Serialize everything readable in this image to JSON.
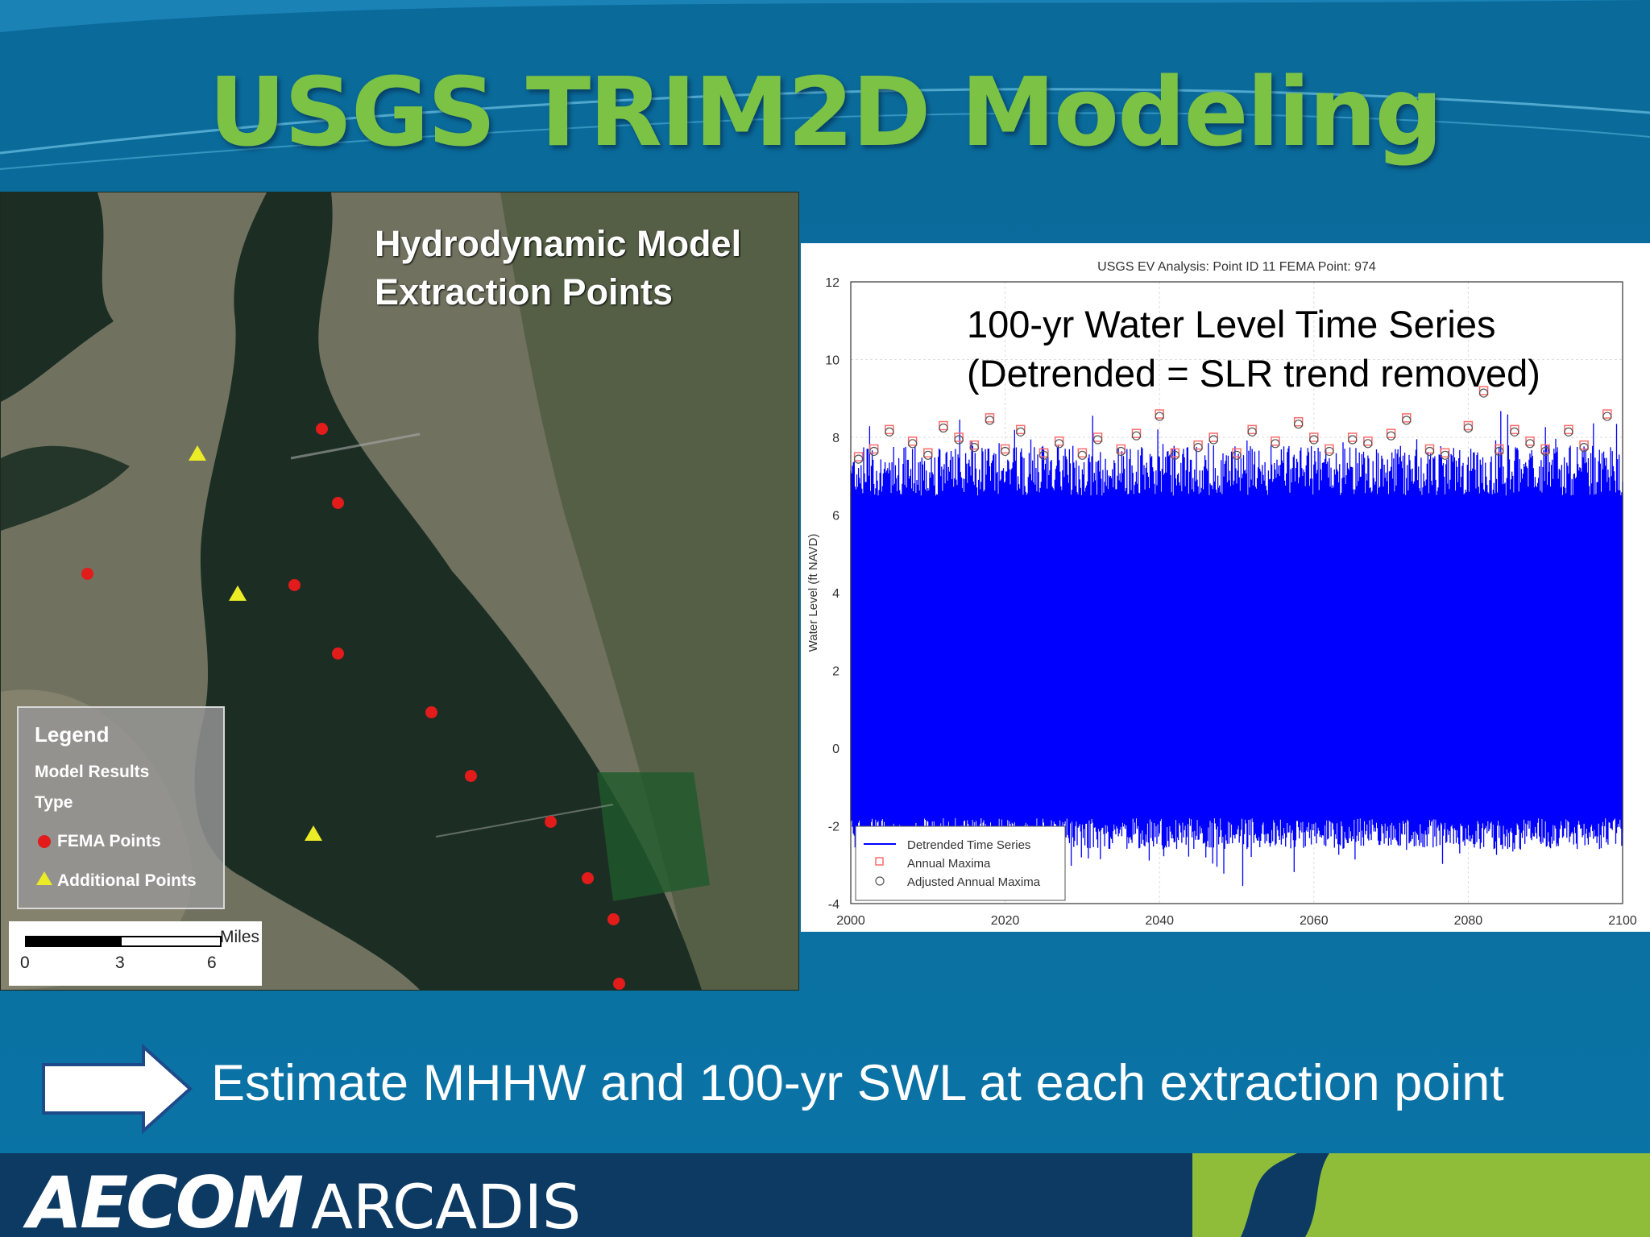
{
  "slide": {
    "title": "USGS TRIM2D Modeling",
    "bottom_text": "Estimate MHHW and 100-yr SWL at each extraction point"
  },
  "map": {
    "title_line1": "Hydrodynamic Model",
    "title_line2": "Extraction Points",
    "legend": {
      "title": "Legend",
      "subtitle_line1": "Model Results",
      "subtitle_line2": "Type",
      "item_fema": "FEMA Points",
      "item_additional": "Additional Points"
    },
    "scale": {
      "unit": "Miles",
      "t0": "0",
      "t1": "3",
      "t2": "6"
    },
    "colors": {
      "fema": "#e21b1b",
      "additional": "#ecec26"
    }
  },
  "chart_overlay": {
    "line1": "100-yr Water Level Time Series",
    "line2": "(Detrended = SLR trend removed)"
  },
  "chart_data": {
    "type": "line",
    "title": "USGS EV Analysis: Point ID 11    FEMA Point: 974",
    "xlabel": "",
    "ylabel": "Water Level (ft NAVD)",
    "xlim": [
      2000,
      2100
    ],
    "ylim": [
      -4,
      12
    ],
    "xticks": [
      "2000",
      "2020",
      "2040",
      "2060",
      "2080",
      "2100"
    ],
    "yticks": [
      "-4",
      "-2",
      "0",
      "2",
      "4",
      "6",
      "8",
      "10",
      "12"
    ],
    "grid": true,
    "legend_position": "bottom-left",
    "legend": [
      "Detrended Time Series",
      "Annual Maxima",
      "Adjusted Annual Maxima"
    ],
    "series": [
      {
        "name": "Detrended Time Series",
        "color": "#0000ff",
        "band_low": -1.8,
        "band_high": 6.5
      },
      {
        "name": "Annual Maxima",
        "color": "#ff6b6b"
      },
      {
        "name": "Adjusted Annual Maxima",
        "color": "#555555"
      }
    ],
    "annual_maxima": {
      "x": [
        2001,
        2003,
        2005,
        2008,
        2010,
        2012,
        2014,
        2016,
        2018,
        2020,
        2022,
        2025,
        2027,
        2030,
        2032,
        2035,
        2037,
        2040,
        2042,
        2045,
        2047,
        2050,
        2052,
        2055,
        2058,
        2060,
        2062,
        2065,
        2067,
        2070,
        2072,
        2075,
        2077,
        2080,
        2082,
        2084,
        2086,
        2088,
        2090,
        2093,
        2095,
        2098
      ],
      "y": [
        7.5,
        7.7,
        8.2,
        7.9,
        7.6,
        8.3,
        8.0,
        7.8,
        8.5,
        7.7,
        8.2,
        7.6,
        7.9,
        7.6,
        8.0,
        7.7,
        8.1,
        8.6,
        7.6,
        7.8,
        8.0,
        7.6,
        8.2,
        7.9,
        8.4,
        8.0,
        7.7,
        8.0,
        7.9,
        8.1,
        8.5,
        7.7,
        7.6,
        8.3,
        9.2,
        7.7,
        8.2,
        7.9,
        7.7,
        8.2,
        7.8,
        8.6
      ]
    }
  },
  "footer": {
    "logo_left": "AECOM",
    "logo_right": "ARCADIS"
  }
}
